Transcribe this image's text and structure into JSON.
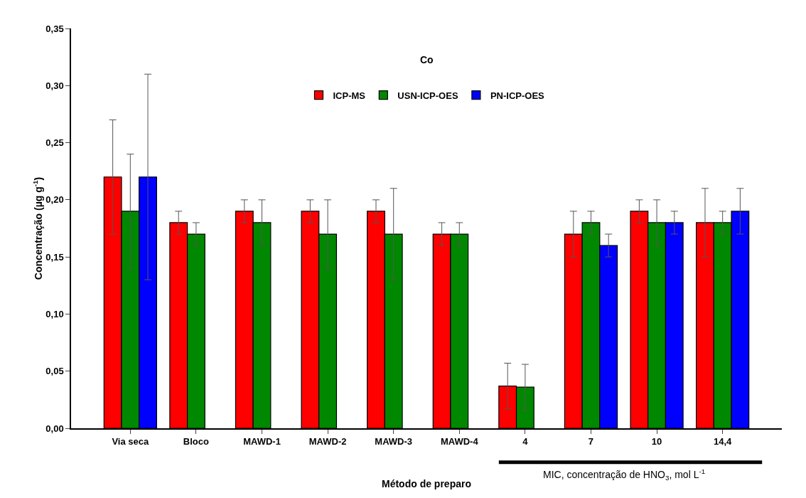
{
  "chart_data": {
    "type": "bar",
    "title": "Co",
    "xlabel": "Método de preparo",
    "ylabel": "Concentração (µg g$^{-1}$)",
    "categories": [
      "Via seca",
      "Bloco",
      "MAWD-1",
      "MAWD-2",
      "MAWD-3",
      "MAWD-4",
      "4",
      "7",
      "10",
      "14,4"
    ],
    "series": [
      {
        "name": "ICP-MS",
        "color": "#ff0000",
        "values": [
          0.22,
          0.18,
          0.19,
          0.19,
          0.19,
          0.17,
          0.037,
          0.17,
          0.19,
          0.18
        ],
        "errors": [
          0.05,
          0.01,
          0.01,
          0.01,
          0.01,
          0.01,
          0.02,
          0.02,
          0.01,
          0.03
        ]
      },
      {
        "name": "USN-ICP-OES",
        "color": "#008800",
        "values": [
          0.19,
          0.17,
          0.18,
          0.17,
          0.17,
          0.17,
          0.036,
          0.18,
          0.18,
          0.18
        ],
        "errors": [
          0.05,
          0.01,
          0.02,
          0.03,
          0.04,
          0.01,
          0.02,
          0.01,
          0.02,
          0.01
        ]
      },
      {
        "name": "PN-ICP-OES",
        "color": "#0000ff",
        "values": [
          0.22,
          null,
          null,
          null,
          null,
          null,
          null,
          0.16,
          0.18,
          0.19
        ],
        "errors": [
          0.09,
          null,
          null,
          null,
          null,
          null,
          null,
          0.01,
          0.01,
          0.02
        ]
      }
    ],
    "ylim": [
      0,
      0.35
    ],
    "yticks": [
      {
        "value": 0,
        "label": "0,00"
      },
      {
        "value": 0.05,
        "label": "0,05"
      },
      {
        "value": 0.1,
        "label": "0,10"
      },
      {
        "value": 0.15,
        "label": "0,15"
      },
      {
        "value": 0.2,
        "label": "0,20"
      },
      {
        "value": 0.25,
        "label": "0,25"
      },
      {
        "value": 0.3,
        "label": "0,30"
      },
      {
        "value": 0.35,
        "label": "0,35"
      }
    ],
    "grid": false,
    "legend": "top",
    "annotations": [
      "MIC, concentração de HNO$_{3}$, mol L$^{-1}$"
    ]
  }
}
